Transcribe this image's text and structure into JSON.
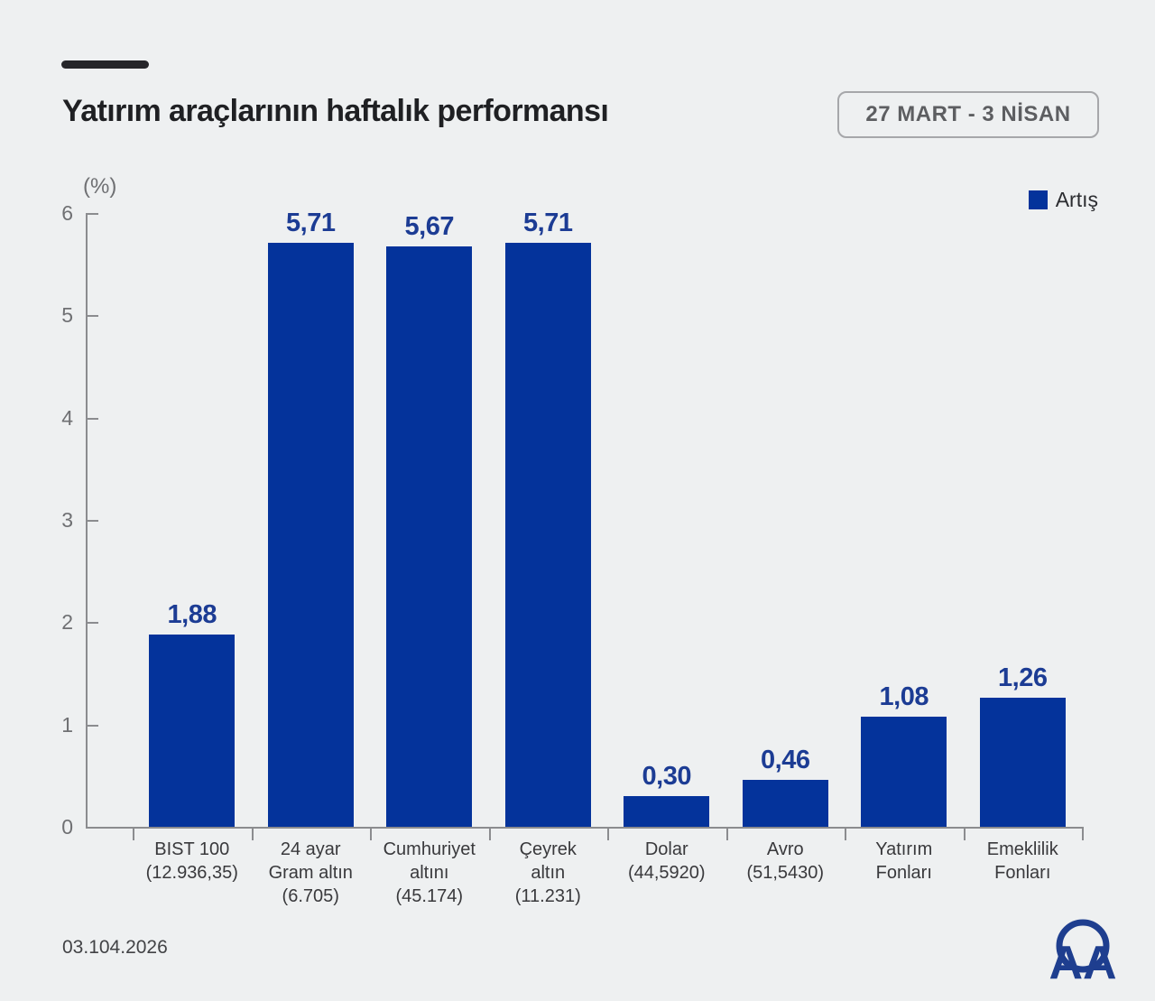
{
  "header": {
    "title": "Yatırım araçlarının haftalık performansı",
    "date_range": "27 MART - 3 NİSAN"
  },
  "legend": {
    "label": "Artış",
    "color": "#04339b"
  },
  "footer": {
    "date": "03.104.2026",
    "logo": "AA"
  },
  "chart_data": {
    "type": "bar",
    "title": "Yatırım araçlarının haftalık performansı",
    "unit_label": "(%)",
    "categories": [
      "BIST 100 (12.936,35)",
      "24 ayar Gram altın (6.705)",
      "Cumhuriyet altını (45.174)",
      "Çeyrek altın (11.231)",
      "Dolar (44,5920)",
      "Avro (51,5430)",
      "Yatırım Fonları",
      "Emeklilik Fonları"
    ],
    "category_lines": [
      [
        "BIST 100",
        "(12.936,35)"
      ],
      [
        "24 ayar",
        "Gram altın",
        "(6.705)"
      ],
      [
        "Cumhuriyet",
        "altını",
        "(45.174)"
      ],
      [
        "Çeyrek",
        "altın",
        "(11.231)"
      ],
      [
        "Dolar",
        "(44,5920)"
      ],
      [
        "Avro",
        "(51,5430)"
      ],
      [
        "Yatırım",
        "Fonları"
      ],
      [
        "Emeklilik",
        "Fonları"
      ]
    ],
    "values": [
      1.88,
      5.71,
      5.67,
      5.71,
      0.3,
      0.46,
      1.08,
      1.26
    ],
    "value_labels": [
      "1,88",
      "5,71",
      "5,67",
      "5,71",
      "0,30",
      "0,46",
      "1,08",
      "1,26"
    ],
    "series": [
      {
        "name": "Artış",
        "values": [
          1.88,
          5.71,
          5.67,
          5.71,
          0.3,
          0.46,
          1.08,
          1.26
        ]
      }
    ],
    "xlabel": "",
    "ylabel": "(%)",
    "ylim": [
      0,
      6
    ],
    "y_ticks": [
      0,
      1,
      2,
      3,
      4,
      5,
      6
    ],
    "grid": false,
    "legend_position": "top-right",
    "bar_color": "#04339b"
  }
}
